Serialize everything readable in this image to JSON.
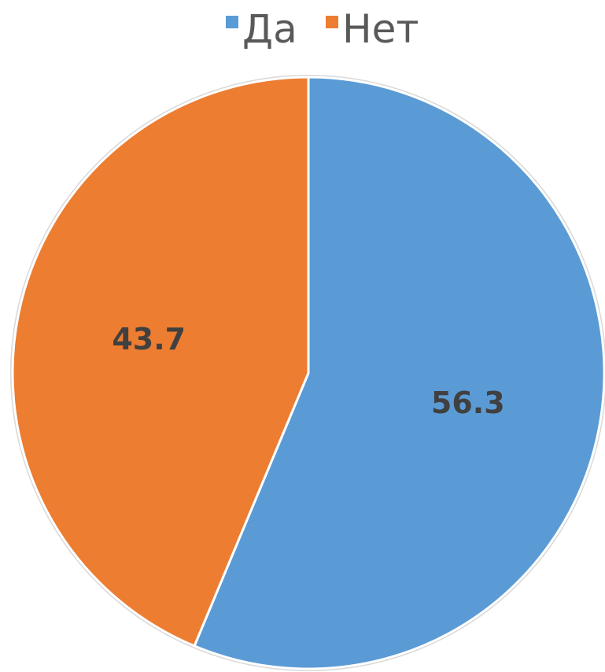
{
  "chart_data": {
    "type": "pie",
    "categories": [
      "Да",
      "Нет"
    ],
    "values": [
      56.3,
      43.7
    ],
    "data_labels": [
      "56.3",
      "43.7"
    ],
    "colors": [
      "#5B9BD5",
      "#ED7D31"
    ],
    "start_angle_deg": 0,
    "direction": "clockwise",
    "legend": {
      "position": "top",
      "items": [
        {
          "label": "Да",
          "color": "#5B9BD5"
        },
        {
          "label": "Нет",
          "color": "#ED7D31"
        }
      ]
    }
  }
}
